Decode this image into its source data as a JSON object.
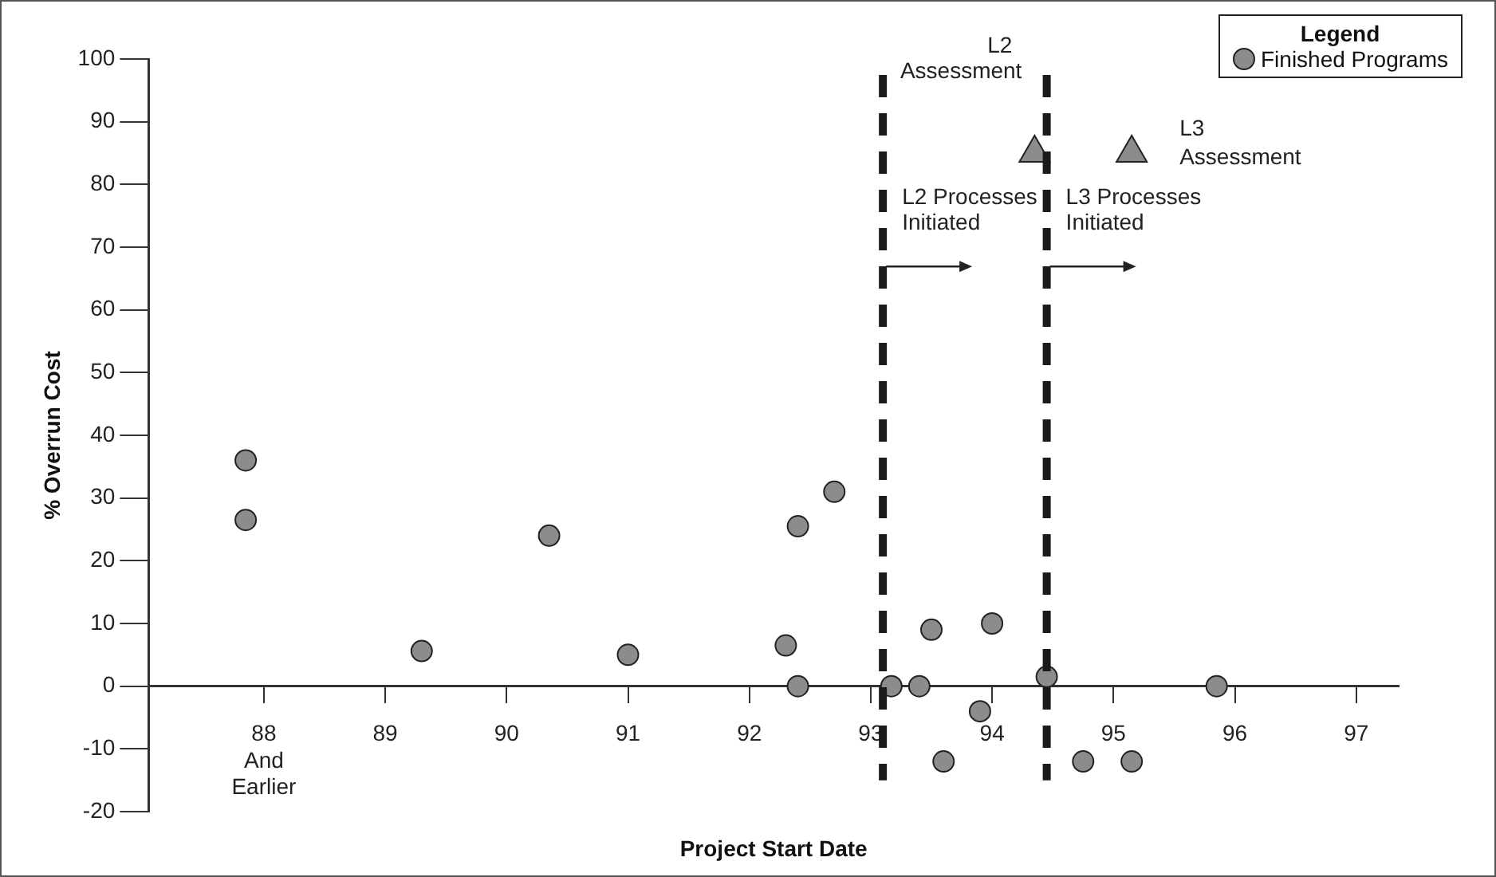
{
  "chart_data": {
    "type": "scatter",
    "xlabel": "Project Start Date",
    "ylabel": "% Overrun Cost",
    "legend_title": "Legend",
    "legend": "top right",
    "grid": false,
    "marker": "circle",
    "xlim": [
      87.05,
      97.35
    ],
    "ylim": [
      -20,
      100
    ],
    "xticks": [
      {
        "value": 88,
        "label": "88\nAnd\nEarlier"
      },
      89,
      90,
      91,
      92,
      93,
      94,
      95,
      96,
      97
    ],
    "yticks": [
      -20,
      -10,
      0,
      10,
      20,
      30,
      40,
      50,
      60,
      70,
      80,
      90,
      100
    ],
    "series": [
      {
        "name": "Finished Programs",
        "color": "#8c8c8c",
        "x": [
          87.85,
          87.85,
          89.3,
          90.35,
          91.0,
          92.3,
          92.4,
          92.4,
          92.7,
          93.17,
          93.4,
          93.5,
          93.6,
          93.9,
          94.0,
          94.45,
          94.75,
          95.15,
          95.85
        ],
        "values": [
          36,
          26.5,
          5.6,
          24,
          5,
          6.5,
          0,
          25.5,
          31,
          0,
          0,
          9,
          -12,
          -4,
          10,
          1.5,
          -12,
          -12,
          0
        ]
      },
      {
        "color": "#8c8c8c",
        "marker": "triangle",
        "x": [
          94.35,
          95.15
        ],
        "values": [
          85,
          85
        ]
      }
    ],
    "ref_lines": [
      {
        "axis": "x",
        "value": 93.1,
        "label": "L2 Processes Initiated",
        "color": "#1a1a1a",
        "line_style": "dashed"
      },
      {
        "axis": "x",
        "value": 94.45,
        "label": "L3 Processes Initiated",
        "color": "#1a1a1a",
        "line_style": "dashed"
      }
    ],
    "annotations": [
      "L2 Assessment",
      "L3 Assessment"
    ]
  }
}
